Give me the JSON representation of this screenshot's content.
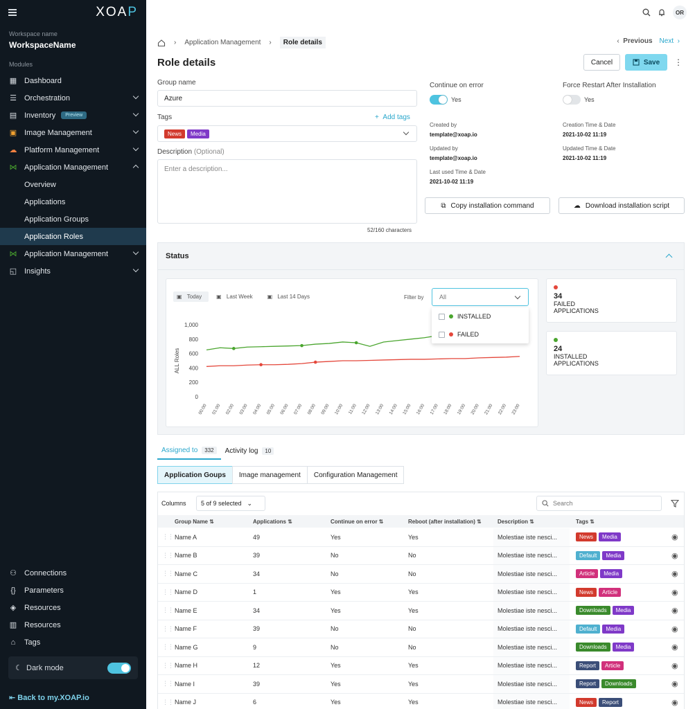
{
  "sidebar": {
    "logo_a": "XOA",
    "logo_b": "P",
    "workspace_label": "Workspace name",
    "workspace_name": "WorkspaceName",
    "modules_label": "Modules",
    "items": [
      {
        "label": "Dashboard",
        "icon": "dashboard-icon"
      },
      {
        "label": "Orchestration",
        "icon": "orchestration-icon"
      },
      {
        "label": "Inventory",
        "icon": "inventory-icon",
        "badge": "Preview"
      },
      {
        "label": "Image Management",
        "icon": "image-management-icon"
      },
      {
        "label": "Platform Management",
        "icon": "cloud-icon"
      },
      {
        "label": "Application Management",
        "icon": "share-icon"
      },
      {
        "label": "Overview"
      },
      {
        "label": "Applications"
      },
      {
        "label": "Application Groups"
      },
      {
        "label": "Application Roles"
      },
      {
        "label": "Application Management",
        "icon": "share-icon"
      },
      {
        "label": "Insights",
        "icon": "insights-icon"
      }
    ],
    "bottom": [
      {
        "label": "Connections",
        "icon": "connections-icon"
      },
      {
        "label": "Parameters",
        "icon": "parameters-icon"
      },
      {
        "label": "Resources",
        "icon": "cube-icon"
      },
      {
        "label": "Resources",
        "icon": "resources-icon"
      },
      {
        "label": "Tags",
        "icon": "tag-icon"
      }
    ],
    "dark_mode": "Dark mode",
    "back_link": "Back to my.XOAP.io"
  },
  "topbar": {
    "avatar": "OR"
  },
  "breadcrumb": {
    "item1": "Application Management",
    "current": "Role details"
  },
  "pager": {
    "previous": "Previous",
    "next": "Next"
  },
  "page": {
    "title": "Role details",
    "cancel": "Cancel",
    "save": "Save"
  },
  "form": {
    "group_label": "Group name",
    "group_value": "Azure",
    "tags_label": "Tags",
    "add_tags": "Add tags",
    "tags": [
      {
        "label": "News",
        "color": "#d23a2d"
      },
      {
        "label": "Media",
        "color": "#7f39c8"
      }
    ],
    "desc_label": "Description",
    "desc_optional": "(Optional)",
    "desc_placeholder": "Enter a description...",
    "char_count": "52/160 characters",
    "continue_label": "Continue on error",
    "continue_value": "Yes",
    "force_label": "Force Restart After Installation",
    "force_value": "Yes",
    "created_by_label": "Created by",
    "created_by": "template@xoap.io",
    "created_time_label": "Creation Time & Date",
    "created_time": "2021-10-02 11:19",
    "updated_by_label": "Updated by",
    "updated_by": "template@xoap.io",
    "updated_time_label": "Updated Time & Date",
    "updated_time": "2021-10-02 11:19",
    "last_used_label": "Last used Time & Date",
    "last_used": "2021-10-02 11:19",
    "copy_cmd": "Copy installation command",
    "download_script": "Download installation script"
  },
  "status": {
    "title": "Status",
    "tabs": [
      "Today",
      "Last Week",
      "Last 14 Days"
    ],
    "filter_label": "Filter by",
    "filter_value": "All",
    "filter_options": [
      "INSTALLED",
      "FAILED"
    ],
    "kpi_failed": {
      "value": "34",
      "line1": "FAILED",
      "line2": "APPLICATIONS"
    },
    "kpi_installed": {
      "value": "24",
      "line1": "INSTALLED",
      "line2": "APPLICATIONS"
    }
  },
  "chart_data": {
    "type": "line",
    "ylabel": "ALL Roles",
    "yticks": [
      "1,000",
      "800",
      "600",
      "400",
      "200",
      "0"
    ],
    "ylim": [
      0,
      1000
    ],
    "x": [
      "00:00",
      "01:00",
      "02:00",
      "03:00",
      "04:00",
      "05:00",
      "06:00",
      "07:00",
      "08:00",
      "09:00",
      "10:00",
      "11:00",
      "12:00",
      "13:00",
      "14:00",
      "15:00",
      "16:00",
      "17:00",
      "18:00",
      "19:00",
      "20:00",
      "21:00",
      "22:00",
      "23:00"
    ],
    "series": [
      {
        "color": "#4aa52e",
        "values": [
          650,
          680,
          670,
          690,
          695,
          700,
          705,
          710,
          730,
          740,
          760,
          750,
          700,
          760,
          780,
          800,
          820,
          850,
          840,
          880,
          900,
          920,
          950,
          960
        ]
      },
      {
        "color": "#e4473b",
        "values": [
          420,
          430,
          430,
          440,
          445,
          445,
          450,
          460,
          480,
          490,
          500,
          500,
          505,
          510,
          515,
          520,
          520,
          525,
          530,
          530,
          540,
          545,
          550,
          560
        ]
      }
    ]
  },
  "tabs_primary": [
    {
      "label": "Assigned to",
      "count": "332"
    },
    {
      "label": "Activity log",
      "count": "10"
    }
  ],
  "tabs_secondary": [
    "Application Goups",
    "Image management",
    "Configuration Management"
  ],
  "table": {
    "columns_label": "Columns",
    "columns_value": "5 of 9 selected",
    "search_placeholder": "Search",
    "headers": [
      "Group Name",
      "Applications",
      "Continue on error",
      "Reboot (after installation)",
      "Description",
      "Tags"
    ],
    "rows": [
      {
        "name": "Name A",
        "apps": "49",
        "coe": "Yes",
        "reboot": "Yes",
        "desc": "Molestiae iste nesci...",
        "tags": [
          "News",
          "Media"
        ]
      },
      {
        "name": "Name B",
        "apps": "39",
        "coe": "No",
        "reboot": "No",
        "desc": "Molestiae iste nesci...",
        "tags": [
          "Default",
          "Media"
        ]
      },
      {
        "name": "Name C",
        "apps": "34",
        "coe": "No",
        "reboot": "No",
        "desc": "Molestiae iste nesci...",
        "tags": [
          "Article",
          "Media"
        ]
      },
      {
        "name": "Name D",
        "apps": "1",
        "coe": "Yes",
        "reboot": "Yes",
        "desc": "Molestiae iste nesci...",
        "tags": [
          "News",
          "Article"
        ]
      },
      {
        "name": "Name E",
        "apps": "34",
        "coe": "Yes",
        "reboot": "Yes",
        "desc": "Molestiae iste nesci...",
        "tags": [
          "Downloads",
          "Media"
        ]
      },
      {
        "name": "Name F",
        "apps": "39",
        "coe": "No",
        "reboot": "No",
        "desc": "Molestiae iste nesci...",
        "tags": [
          "Default",
          "Media"
        ]
      },
      {
        "name": "Name G",
        "apps": "9",
        "coe": "No",
        "reboot": "No",
        "desc": "Molestiae iste nesci...",
        "tags": [
          "Downloads",
          "Media"
        ]
      },
      {
        "name": "Name H",
        "apps": "12",
        "coe": "Yes",
        "reboot": "Yes",
        "desc": "Molestiae iste nesci...",
        "tags": [
          "Report",
          "Article"
        ]
      },
      {
        "name": "Name I",
        "apps": "39",
        "coe": "Yes",
        "reboot": "Yes",
        "desc": "Molestiae iste nesci...",
        "tags": [
          "Report",
          "Downloads"
        ]
      },
      {
        "name": "Name J",
        "apps": "6",
        "coe": "Yes",
        "reboot": "Yes",
        "desc": "Molestiae iste nesci...",
        "tags": [
          "News",
          "Report"
        ]
      }
    ]
  }
}
